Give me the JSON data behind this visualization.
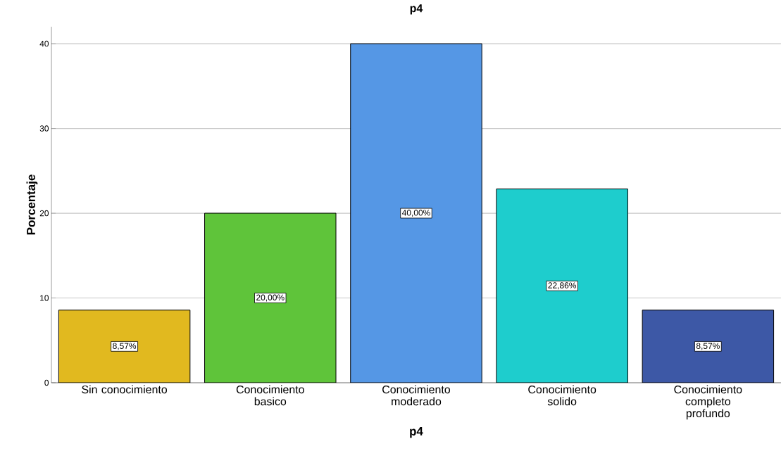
{
  "chart_data": {
    "type": "bar",
    "title": "p4",
    "xlabel": "p4",
    "ylabel": "Porcentaje",
    "categories": [
      "Sin conocimiento",
      "Conocimiento basico",
      "Conocimiento moderado",
      "Conocimiento solido",
      "Conocimiento completo profundo"
    ],
    "values": [
      8.57,
      20.0,
      40.0,
      22.86,
      8.57
    ],
    "value_labels": [
      "8,57%",
      "20,00%",
      "40,00%",
      "22,86%",
      "8,57%"
    ],
    "colors": [
      "#e1b91f",
      "#5fc43a",
      "#5597e5",
      "#1ecdcd",
      "#3d58a6"
    ],
    "ylim": [
      0,
      42
    ],
    "yticks": [
      0,
      10,
      20,
      30,
      40
    ],
    "grid": "y"
  }
}
